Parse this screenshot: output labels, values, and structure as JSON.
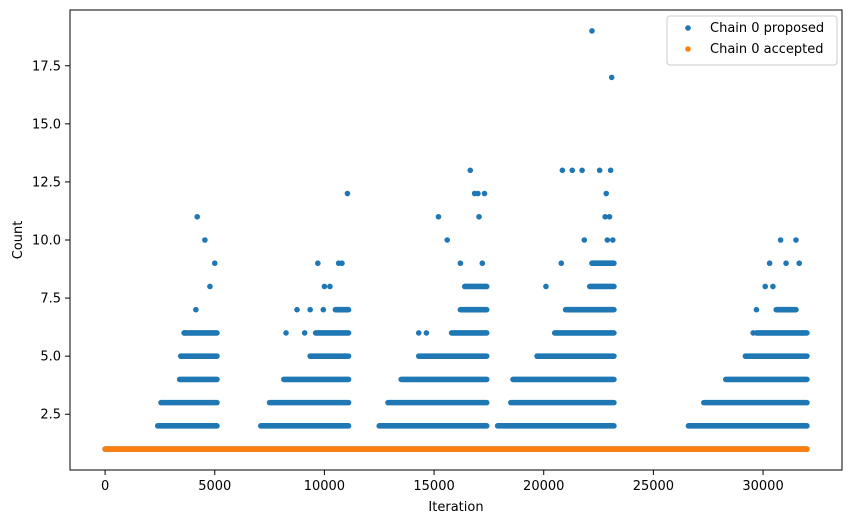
{
  "chart_data": {
    "type": "scatter",
    "title": "",
    "xlabel": "Iteration",
    "ylabel": "Count",
    "xlim": [
      -1600,
      33600
    ],
    "ylim": [
      0.1,
      19.9
    ],
    "xticks": [
      0,
      5000,
      10000,
      15000,
      20000,
      25000,
      30000
    ],
    "yticks": [
      2.5,
      5.0,
      7.5,
      10.0,
      12.5,
      15.0,
      17.5
    ],
    "ytick_labels": [
      "2.5",
      "5.0",
      "7.5",
      "10.0",
      "12.5",
      "15.0",
      "17.5"
    ],
    "legend_position": "top-right",
    "grid": false,
    "series": [
      {
        "name": "Chain 0 proposed",
        "color": "#1f77b4",
        "marker": "dot",
        "baseline": {
          "y": 1,
          "x_start": 0,
          "x_end": 32000
        },
        "bands": [
          {
            "y": 2,
            "x_start": 2400,
            "x_end": 5100
          },
          {
            "y": 3,
            "x_start": 2550,
            "x_end": 5100
          },
          {
            "y": 4,
            "x_start": 3400,
            "x_end": 5100
          },
          {
            "y": 5,
            "x_start": 3450,
            "x_end": 5100
          },
          {
            "y": 6,
            "x_start": 3600,
            "x_end": 5100
          },
          {
            "y": 2,
            "x_start": 7100,
            "x_end": 11100
          },
          {
            "y": 3,
            "x_start": 7500,
            "x_end": 11100
          },
          {
            "y": 4,
            "x_start": 8150,
            "x_end": 11100
          },
          {
            "y": 5,
            "x_start": 9350,
            "x_end": 11100
          },
          {
            "y": 6,
            "x_start": 9600,
            "x_end": 11100
          },
          {
            "y": 7,
            "x_start": 10500,
            "x_end": 11100
          },
          {
            "y": 2,
            "x_start": 12500,
            "x_end": 17400
          },
          {
            "y": 3,
            "x_start": 12900,
            "x_end": 17400
          },
          {
            "y": 4,
            "x_start": 13500,
            "x_end": 17400
          },
          {
            "y": 5,
            "x_start": 14300,
            "x_end": 17400
          },
          {
            "y": 6,
            "x_start": 15800,
            "x_end": 17400
          },
          {
            "y": 7,
            "x_start": 16200,
            "x_end": 17400
          },
          {
            "y": 8,
            "x_start": 16400,
            "x_end": 17400
          },
          {
            "y": 2,
            "x_start": 17900,
            "x_end": 23200
          },
          {
            "y": 3,
            "x_start": 18500,
            "x_end": 23200
          },
          {
            "y": 4,
            "x_start": 18600,
            "x_end": 23200
          },
          {
            "y": 5,
            "x_start": 19700,
            "x_end": 23200
          },
          {
            "y": 6,
            "x_start": 20500,
            "x_end": 23200
          },
          {
            "y": 7,
            "x_start": 21000,
            "x_end": 23200
          },
          {
            "y": 8,
            "x_start": 22100,
            "x_end": 23200
          },
          {
            "y": 9,
            "x_start": 22200,
            "x_end": 23200
          },
          {
            "y": 2,
            "x_start": 26600,
            "x_end": 32000
          },
          {
            "y": 3,
            "x_start": 27300,
            "x_end": 32000
          },
          {
            "y": 4,
            "x_start": 28300,
            "x_end": 32000
          },
          {
            "y": 5,
            "x_start": 29200,
            "x_end": 32000
          },
          {
            "y": 6,
            "x_start": 29700,
            "x_end": 32000
          },
          {
            "y": 7,
            "x_start": 30600,
            "x_end": 31500
          }
        ],
        "points": [
          {
            "x": 3470,
            "y": 5
          },
          {
            "x": 3620,
            "y": 6
          },
          {
            "x": 4140,
            "y": 7
          },
          {
            "x": 4200,
            "y": 11
          },
          {
            "x": 4550,
            "y": 10
          },
          {
            "x": 4780,
            "y": 8
          },
          {
            "x": 5000,
            "y": 9
          },
          {
            "x": 8250,
            "y": 6
          },
          {
            "x": 8750,
            "y": 7
          },
          {
            "x": 9100,
            "y": 6
          },
          {
            "x": 9350,
            "y": 7
          },
          {
            "x": 9700,
            "y": 9
          },
          {
            "x": 9950,
            "y": 7
          },
          {
            "x": 10000,
            "y": 8
          },
          {
            "x": 10250,
            "y": 8
          },
          {
            "x": 10650,
            "y": 9
          },
          {
            "x": 10800,
            "y": 9
          },
          {
            "x": 11050,
            "y": 12
          },
          {
            "x": 14300,
            "y": 6
          },
          {
            "x": 14650,
            "y": 6
          },
          {
            "x": 15200,
            "y": 11
          },
          {
            "x": 15600,
            "y": 10
          },
          {
            "x": 16200,
            "y": 9
          },
          {
            "x": 16650,
            "y": 13
          },
          {
            "x": 16850,
            "y": 12
          },
          {
            "x": 17000,
            "y": 12
          },
          {
            "x": 17050,
            "y": 11
          },
          {
            "x": 17200,
            "y": 9
          },
          {
            "x": 17300,
            "y": 12
          },
          {
            "x": 19700,
            "y": 5
          },
          {
            "x": 20100,
            "y": 8
          },
          {
            "x": 20800,
            "y": 9
          },
          {
            "x": 20850,
            "y": 13
          },
          {
            "x": 21300,
            "y": 13
          },
          {
            "x": 21750,
            "y": 13
          },
          {
            "x": 21850,
            "y": 10
          },
          {
            "x": 22200,
            "y": 19
          },
          {
            "x": 22550,
            "y": 13
          },
          {
            "x": 22800,
            "y": 11
          },
          {
            "x": 22850,
            "y": 12
          },
          {
            "x": 22900,
            "y": 10
          },
          {
            "x": 23000,
            "y": 11
          },
          {
            "x": 23050,
            "y": 13
          },
          {
            "x": 23100,
            "y": 17
          },
          {
            "x": 23150,
            "y": 10
          },
          {
            "x": 29200,
            "y": 5
          },
          {
            "x": 29700,
            "y": 7
          },
          {
            "x": 29550,
            "y": 6
          },
          {
            "x": 30100,
            "y": 8
          },
          {
            "x": 30300,
            "y": 9
          },
          {
            "x": 30450,
            "y": 8
          },
          {
            "x": 30800,
            "y": 10
          },
          {
            "x": 31050,
            "y": 9
          },
          {
            "x": 31500,
            "y": 10
          },
          {
            "x": 31650,
            "y": 9
          },
          {
            "x": 31800,
            "y": 6
          }
        ]
      },
      {
        "name": "Chain 0 accepted",
        "color": "#ff7f0e",
        "marker": "dot",
        "baseline": {
          "y": 1,
          "x_start": 0,
          "x_end": 32000
        },
        "bands": [],
        "points": []
      }
    ]
  }
}
